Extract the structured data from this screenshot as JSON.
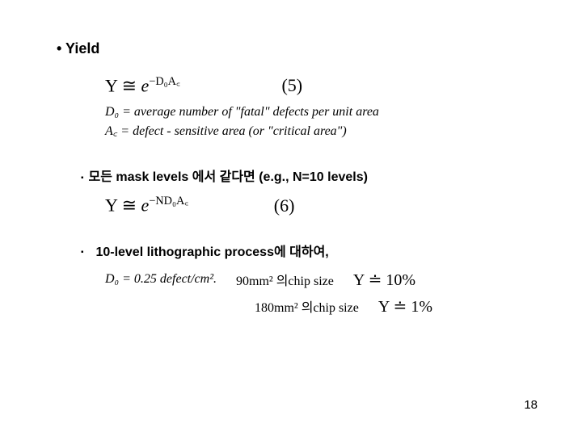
{
  "title": "• Yield",
  "formula5": {
    "lhs": "Y ≅ ",
    "exp_base": "e",
    "exp_sup": "−D₀A꜀",
    "eqnum": "(5)"
  },
  "defs": {
    "d0": "D₀ = average number of \"fatal\" defects per unit area",
    "ac": "A꜀ = defect - sensitive area (or \"critical area\")"
  },
  "bullet2": "모든 mask levels 에서 같다면 (e.g., N=10 levels)",
  "formula6": {
    "lhs": "Y ≅ ",
    "exp_base": "e",
    "exp_sup": "−ND₀A꜀",
    "eqnum": "(6)"
  },
  "bullet3": "10-level lithographic process에 대하여,",
  "example": {
    "d0": "D₀ = 0.25  defect/cm².",
    "size1": "90mm²  의chip size",
    "yield1_lhs": "Y",
    "yield1_op": " ≐ ",
    "yield1_rhs": "10%",
    "size2": "180mm²  의chip size",
    "yield2_lhs": "Y",
    "yield2_op": " ≐ ",
    "yield2_rhs": "1%"
  },
  "pageNumber": "18",
  "colors": {
    "text": "#000000",
    "bg": "#ffffff"
  },
  "fonts": {
    "heading_size": 18,
    "formula_size": 22,
    "body_size": 16
  }
}
